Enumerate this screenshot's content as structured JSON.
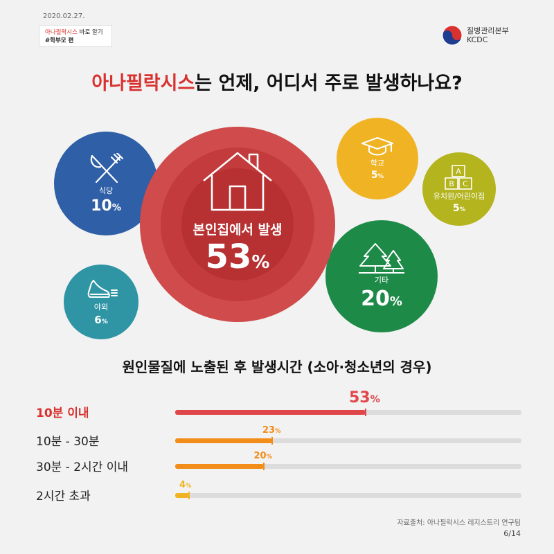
{
  "header": {
    "date": "2020.02.27.",
    "series_prefix": "아나필락시스",
    "series_suffix": " 바로 알기",
    "series_line2": "#학부모 편",
    "org_name": "질병관리본부",
    "org_abbr": "KCDC"
  },
  "title": {
    "highlight": "아나필락시스",
    "rest": "는 언제, 어디서 주로 발생하나요?"
  },
  "locations": {
    "home": {
      "label": "본인집에서 발생",
      "value": "53",
      "unit": "%",
      "icon": "house-icon",
      "color": "#c33b3c"
    },
    "restaurant": {
      "label": "식당",
      "value": "10",
      "unit": "%",
      "icon": "fork-knife-icon",
      "color": "#2f5fa7"
    },
    "school": {
      "label": "학교",
      "value": "5",
      "unit": "%",
      "icon": "graduation-cap-icon",
      "color": "#f0b324"
    },
    "daycare": {
      "label": "유치원/어린이집",
      "value": "5",
      "unit": "%",
      "icon": "abc-blocks-icon",
      "color": "#b3b41e"
    },
    "outdoor": {
      "label": "야외",
      "value": "6",
      "unit": "%",
      "icon": "running-shoe-icon",
      "color": "#2f95a5"
    },
    "other": {
      "label": "기타",
      "value": "20",
      "unit": "%",
      "icon": "trees-icon",
      "color": "#1e8a48"
    }
  },
  "onset": {
    "title": "원인물질에 노출된 후 발생시간 (소아·청소년의 경우)",
    "rows": [
      {
        "label": "10분 이내",
        "value": "53",
        "unit": "%",
        "fraction": 0.55,
        "color": "#e0474a"
      },
      {
        "label": "10분 - 30분",
        "value": "23",
        "unit": "%",
        "fraction": 0.28,
        "color": "#f28d1a"
      },
      {
        "label": "30분 - 2시간 이내",
        "value": "20",
        "unit": "%",
        "fraction": 0.255,
        "color": "#f28d1a"
      },
      {
        "label": "2시간 초과",
        "value": "4",
        "unit": "%",
        "fraction": 0.04,
        "color": "#f0b324"
      }
    ]
  },
  "footer": {
    "source": "자료출처: 아나필락시스 레지스트리 연구팀",
    "page": "6/14"
  }
}
